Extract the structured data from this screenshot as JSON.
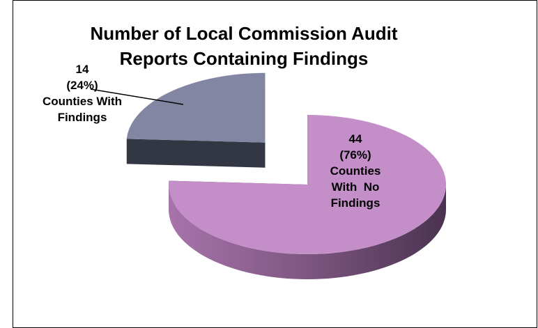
{
  "chart_data": {
    "type": "pie",
    "title": "Number of Local Commission Audit Reports Containing Findings",
    "categories": [
      "Counties With Findings",
      "Counties With  No Findings"
    ],
    "values": [
      14,
      44
    ],
    "percent_labels": [
      "(24%)",
      "(76%)"
    ],
    "colors": [
      "#8286a2",
      "#c48fc9"
    ],
    "side_colors": [
      "#333743",
      "#5e3e60"
    ]
  }
}
